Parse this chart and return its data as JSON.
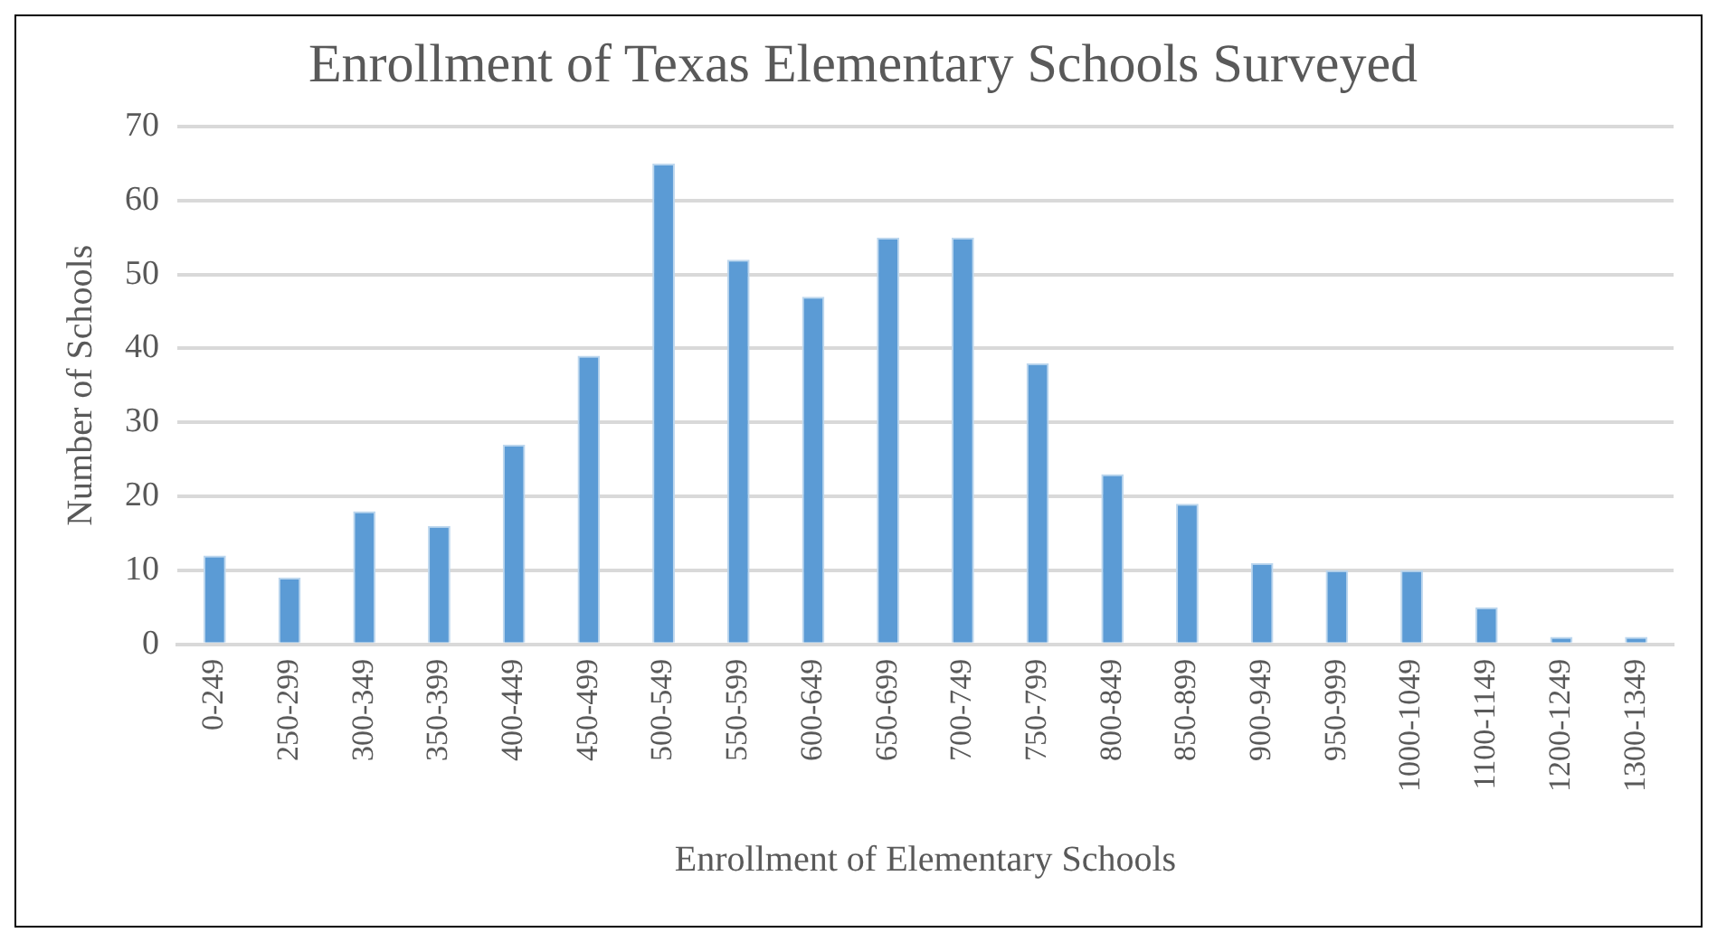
{
  "chart_data": {
    "type": "bar",
    "title": "Enrollment of Texas Elementary Schools Surveyed",
    "xlabel": "Enrollment of Elementary Schools",
    "ylabel": "Number of Schools",
    "categories": [
      "0-249",
      "250-299",
      "300-349",
      "350-399",
      "400-449",
      "450-499",
      "500-549",
      "550-599",
      "600-649",
      "650-699",
      "700-749",
      "750-799",
      "800-849",
      "850-899",
      "900-949",
      "950-999",
      "1000-1049",
      "1100-1149",
      "1200-1249",
      "1300-1349"
    ],
    "values": [
      12,
      9,
      18,
      16,
      27,
      39,
      65,
      52,
      47,
      55,
      55,
      38,
      23,
      19,
      11,
      10,
      10,
      5,
      1,
      1
    ],
    "color": "#5b9bd5",
    "ylim": [
      0,
      70
    ],
    "yticks": [
      0,
      10,
      20,
      30,
      40,
      50,
      60,
      70
    ],
    "grid": "y",
    "legend": false
  }
}
